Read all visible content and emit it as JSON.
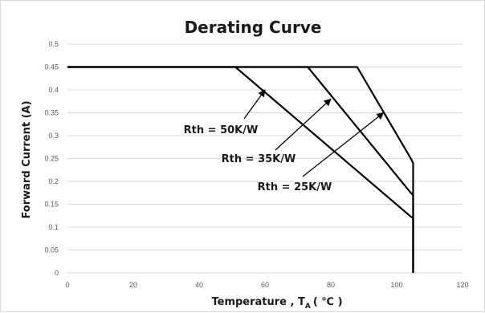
{
  "chart_data": {
    "type": "line",
    "title": "Derating Curve",
    "xlabel_main": "Temperature , T",
    "xlabel_sub": "A",
    "xlabel_unit": "( ℃ )",
    "ylabel": "Forward Current (A)",
    "xlim": [
      0,
      120
    ],
    "ylim": [
      0,
      0.5
    ],
    "x_ticks": [
      "0",
      "20",
      "40",
      "60",
      "80",
      "100",
      "120"
    ],
    "y_ticks": [
      "0",
      "0.05",
      "0.1",
      "0.15",
      "0.2",
      "0.25",
      "0.3",
      "0.35",
      "0.4",
      "0.45",
      "0.5"
    ],
    "grid": "horizontal",
    "series": [
      {
        "name": "Rth = 50K/W",
        "x": [
          0,
          51,
          104.3,
          105,
          105
        ],
        "y": [
          0.45,
          0.45,
          0.123,
          0.12,
          0
        ]
      },
      {
        "name": "Rth = 35K/W",
        "x": [
          0,
          73,
          104.3,
          105,
          105
        ],
        "y": [
          0.45,
          0.45,
          0.175,
          0.17,
          0
        ]
      },
      {
        "name": "Rth = 25K/W",
        "x": [
          0,
          88,
          104.3,
          105,
          105
        ],
        "y": [
          0.45,
          0.45,
          0.25,
          0.24,
          0
        ]
      }
    ],
    "annotations": [
      {
        "text": "Rth = 50K/W",
        "target": [
          60,
          0.4
        ]
      },
      {
        "text": "Rth = 35K/W",
        "target": [
          80,
          0.38
        ]
      },
      {
        "text": "Rth = 25K/W",
        "target": [
          96,
          0.35
        ]
      }
    ]
  }
}
